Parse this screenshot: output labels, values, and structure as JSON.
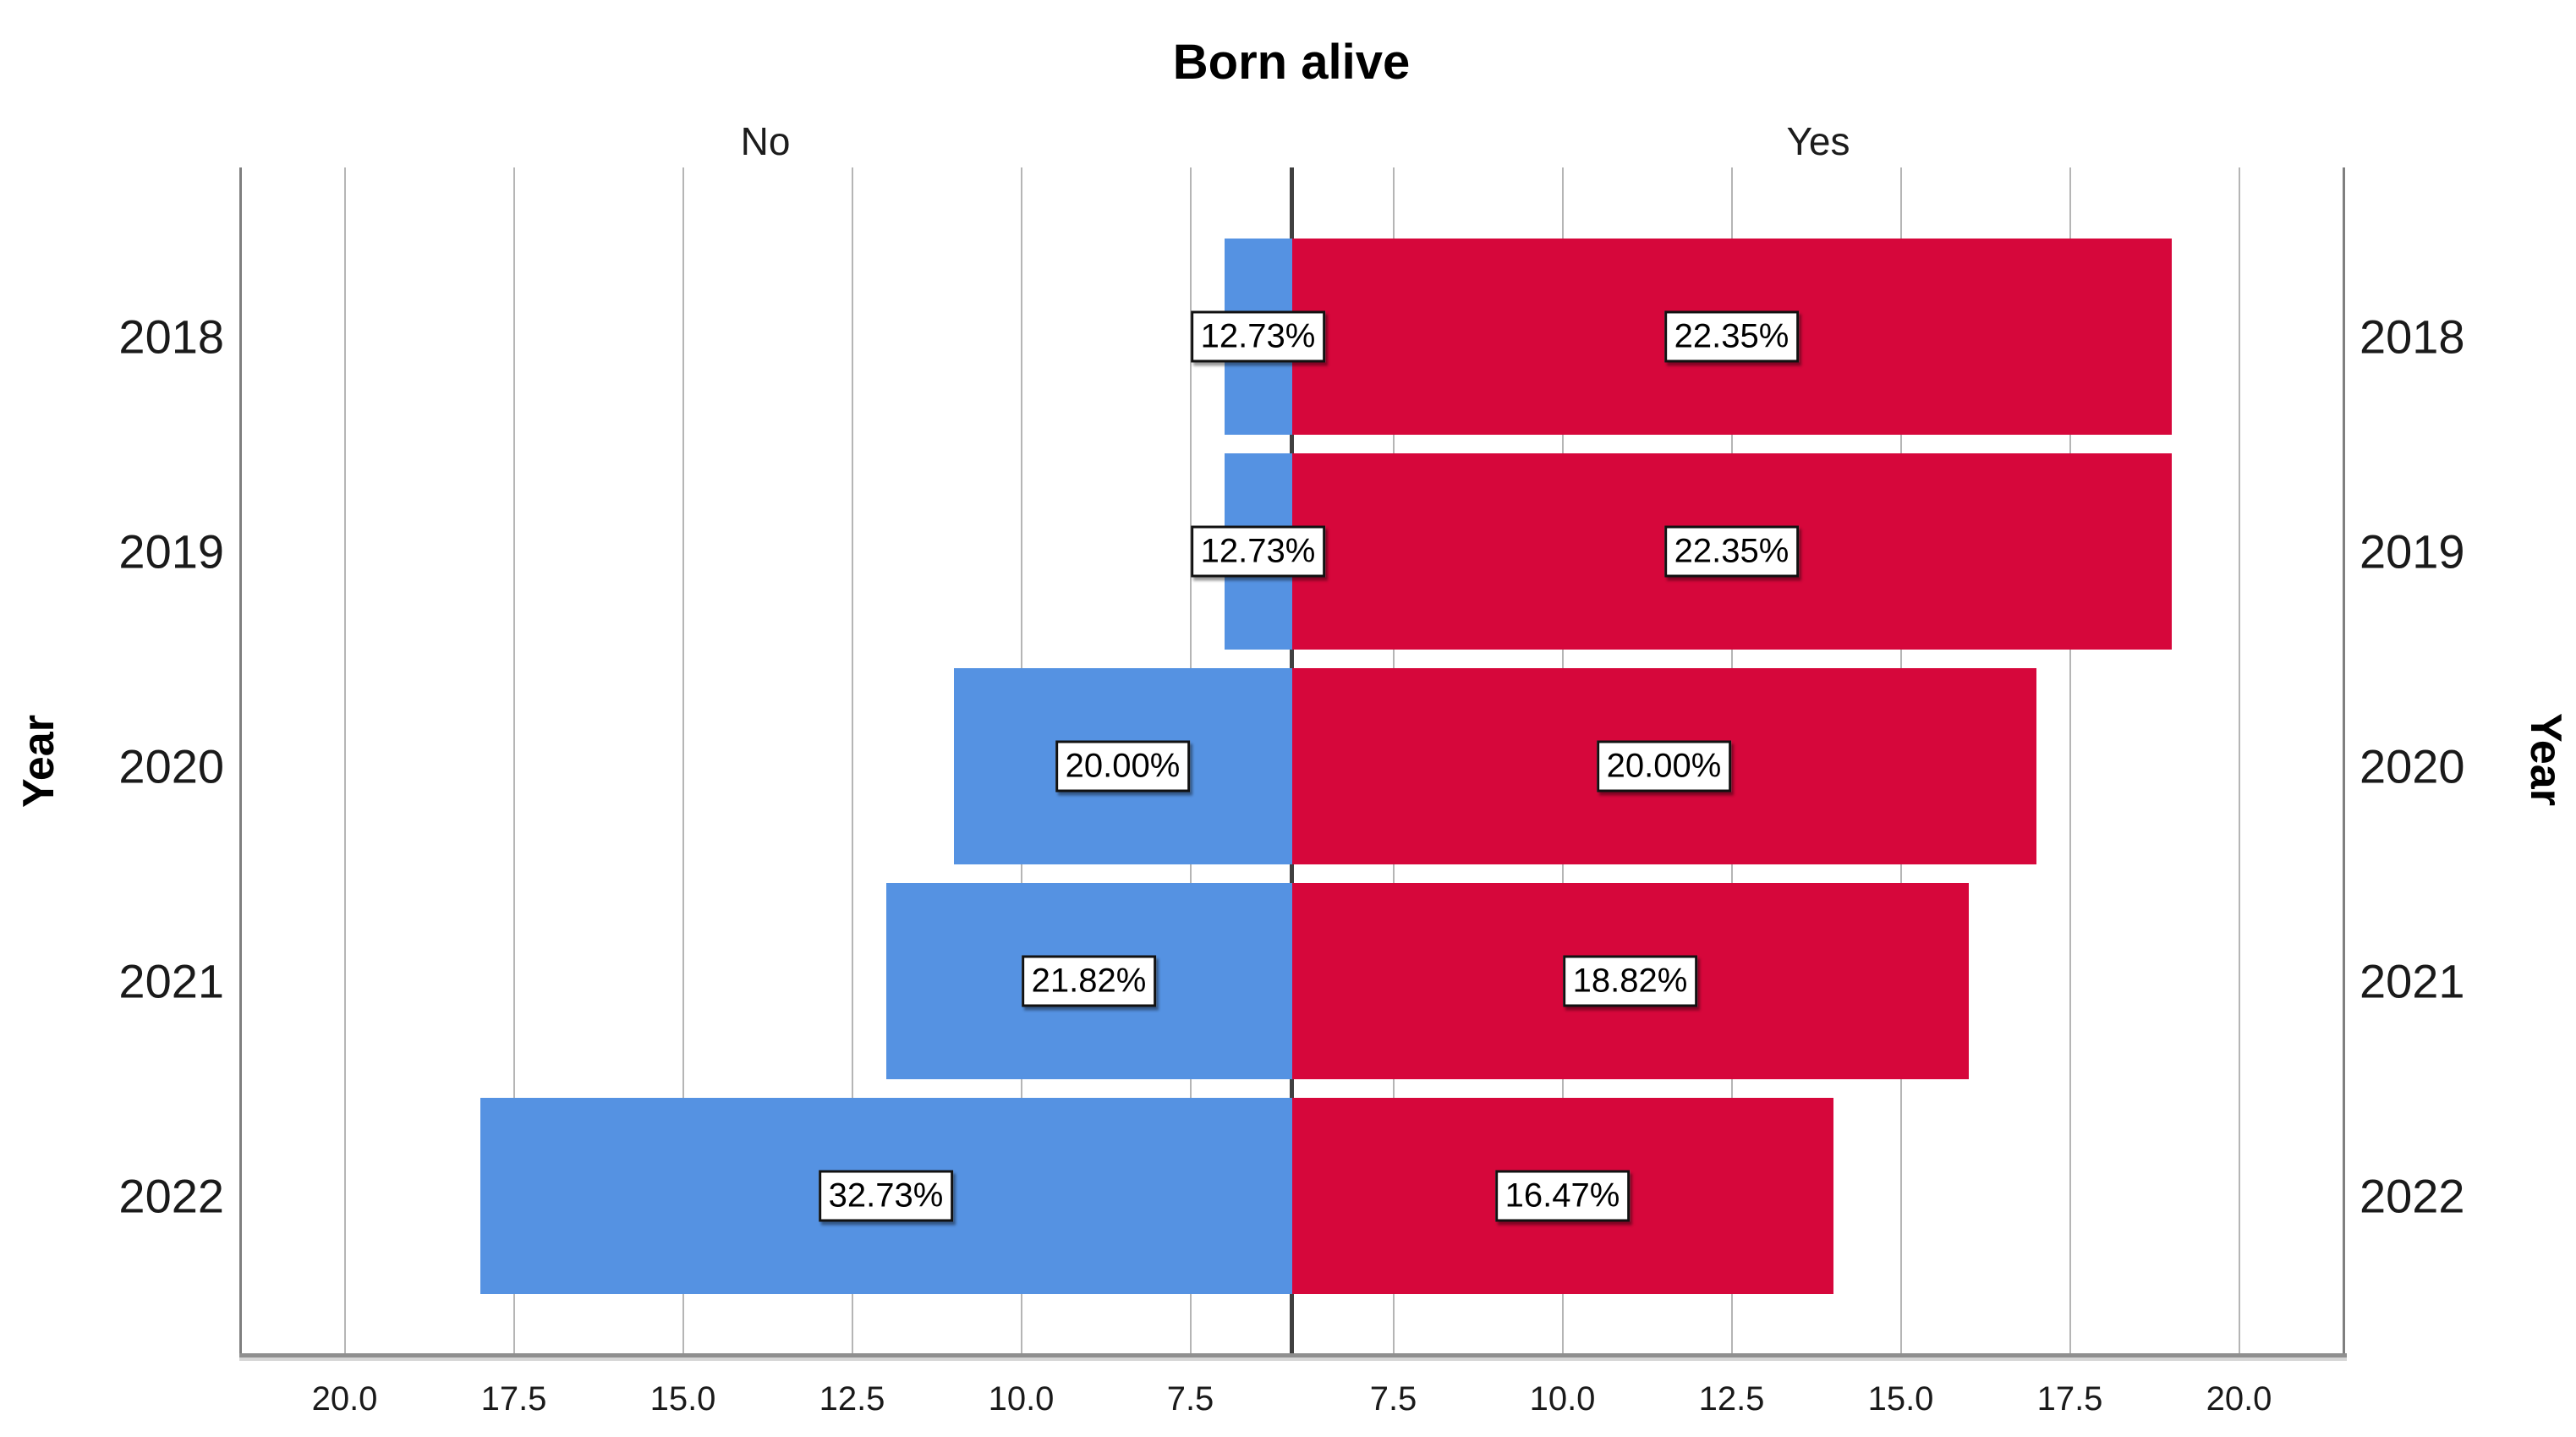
{
  "chart_data": {
    "type": "bar",
    "subtype": "population_pyramid",
    "title": "Born alive",
    "panels": [
      {
        "label": "No",
        "side": "left",
        "color": "#5592E2"
      },
      {
        "label": "Yes",
        "side": "right",
        "color": "#D6073B"
      }
    ],
    "categories": [
      "2018",
      "2019",
      "2020",
      "2021",
      "2022"
    ],
    "y_axis_title_left": "Year",
    "y_axis_title_right": "Year",
    "series": [
      {
        "name": "No",
        "color": "#5592E2",
        "values": [
          7,
          7,
          11,
          12,
          18
        ],
        "percent_labels": [
          "12.73%",
          "12.73%",
          "20.00%",
          "21.82%",
          "32.73%"
        ]
      },
      {
        "name": "Yes",
        "color": "#D6073B",
        "values": [
          19,
          19,
          17,
          16,
          14
        ],
        "percent_labels": [
          "22.35%",
          "22.35%",
          "20.00%",
          "18.82%",
          "16.47%"
        ]
      }
    ],
    "x_axis": {
      "tick_values": [
        7.5,
        10.0,
        12.5,
        15.0,
        17.5,
        20.0
      ],
      "tick_labels_left_to_right": [
        "20.0",
        "17.5",
        "15.0",
        "12.5",
        "10.0",
        "7.5",
        "7.5",
        "10.0",
        "12.5",
        "15.0",
        "17.5",
        "20.0"
      ],
      "min": 6.0,
      "max": 21.6,
      "grid": true
    },
    "colors": {
      "grid": "#b5b5b5",
      "center_line": "#404040",
      "frame": "#7f7f7f",
      "bar_no": "#5592E2",
      "bar_yes": "#D6073B"
    }
  }
}
